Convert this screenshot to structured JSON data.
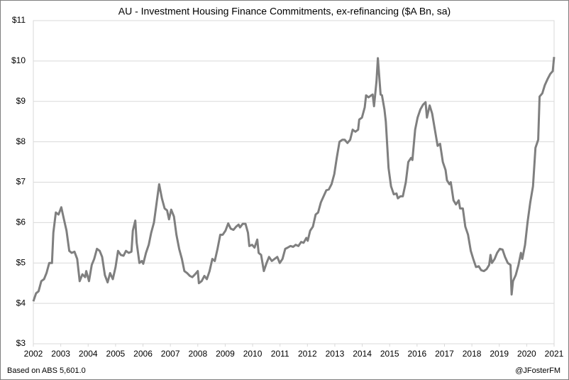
{
  "chart_data": {
    "type": "line",
    "title": "AU - Investment Housing Finance Commitments, ex-refinancing ($A Bn, sa)",
    "source": "Based on ABS 5,601.0",
    "credit": "@JFosterFM",
    "x": [
      2002.0,
      2002.1,
      2002.19,
      2002.29,
      2002.39,
      2002.48,
      2002.58,
      2002.68,
      2002.73,
      2002.82,
      2002.92,
      2003.02,
      2003.11,
      2003.21,
      2003.31,
      2003.4,
      2003.5,
      2003.6,
      2003.69,
      2003.79,
      2003.89,
      2003.93,
      2004.03,
      2004.13,
      2004.22,
      2004.32,
      2004.42,
      2004.51,
      2004.61,
      2004.71,
      2004.8,
      2004.9,
      2005.0,
      2005.09,
      2005.19,
      2005.29,
      2005.38,
      2005.48,
      2005.58,
      2005.63,
      2005.72,
      2005.77,
      2005.87,
      2005.96,
      2006.01,
      2006.11,
      2006.21,
      2006.3,
      2006.4,
      2006.5,
      2006.59,
      2006.69,
      2006.79,
      2006.88,
      2006.95,
      2007.03,
      2007.13,
      2007.22,
      2007.32,
      2007.42,
      2007.51,
      2007.61,
      2007.71,
      2007.8,
      2007.9,
      2008.0,
      2008.04,
      2008.14,
      2008.24,
      2008.33,
      2008.43,
      2008.53,
      2008.62,
      2008.72,
      2008.82,
      2008.91,
      2009.01,
      2009.11,
      2009.2,
      2009.3,
      2009.4,
      2009.49,
      2009.54,
      2009.64,
      2009.74,
      2009.83,
      2009.88,
      2009.98,
      2010.07,
      2010.17,
      2010.22,
      2010.31,
      2010.41,
      2010.51,
      2010.6,
      2010.7,
      2010.8,
      2010.9,
      2010.99,
      2011.09,
      2011.19,
      2011.28,
      2011.38,
      2011.48,
      2011.57,
      2011.67,
      2011.77,
      2011.86,
      2011.96,
      2012.01,
      2012.1,
      2012.2,
      2012.3,
      2012.39,
      2012.49,
      2012.59,
      2012.69,
      2012.78,
      2012.88,
      2012.98,
      2013.07,
      2013.17,
      2013.27,
      2013.36,
      2013.46,
      2013.56,
      2013.65,
      2013.75,
      2013.85,
      2013.89,
      2013.99,
      2014.09,
      2014.14,
      2014.23,
      2014.33,
      2014.38,
      2014.43,
      2014.52,
      2014.57,
      2014.67,
      2014.72,
      2014.81,
      2014.86,
      2014.96,
      2015.05,
      2015.15,
      2015.25,
      2015.3,
      2015.39,
      2015.48,
      2015.59,
      2015.68,
      2015.78,
      2015.83,
      2015.93,
      2016.02,
      2016.12,
      2016.22,
      2016.31,
      2016.36,
      2016.46,
      2016.55,
      2016.65,
      2016.75,
      2016.84,
      2016.94,
      2017.04,
      2017.09,
      2017.18,
      2017.23,
      2017.33,
      2017.42,
      2017.52,
      2017.57,
      2017.67,
      2017.76,
      2017.86,
      2017.96,
      2018.05,
      2018.15,
      2018.25,
      2018.34,
      2018.44,
      2018.54,
      2018.63,
      2018.68,
      2018.73,
      2018.83,
      2018.92,
      2019.02,
      2019.12,
      2019.21,
      2019.31,
      2019.41,
      2019.45,
      2019.5,
      2019.6,
      2019.7,
      2019.79,
      2019.84,
      2019.94,
      2020.03,
      2020.13,
      2020.23,
      2020.32,
      2020.42,
      2020.47,
      2020.57,
      2020.66,
      2020.76,
      2020.86,
      2020.95,
      2021.0
    ],
    "series": [
      {
        "color": "#7f7f7f",
        "values": [
          4.05,
          4.25,
          4.3,
          4.55,
          4.6,
          4.75,
          5.0,
          5.0,
          5.75,
          6.25,
          6.2,
          6.38,
          6.1,
          5.8,
          5.3,
          5.25,
          5.28,
          5.1,
          4.55,
          4.72,
          4.65,
          4.8,
          4.55,
          4.95,
          5.1,
          5.35,
          5.3,
          5.15,
          4.7,
          4.52,
          4.75,
          4.6,
          4.9,
          5.3,
          5.2,
          5.18,
          5.3,
          5.25,
          5.28,
          5.8,
          6.05,
          5.5,
          5.0,
          5.05,
          4.98,
          5.25,
          5.45,
          5.75,
          6.0,
          6.5,
          6.95,
          6.6,
          6.35,
          6.3,
          6.08,
          6.32,
          6.15,
          5.7,
          5.35,
          5.1,
          4.8,
          4.75,
          4.68,
          4.65,
          4.72,
          4.8,
          4.5,
          4.55,
          4.68,
          4.6,
          4.8,
          5.1,
          5.05,
          5.35,
          5.7,
          5.7,
          5.8,
          5.98,
          5.85,
          5.82,
          5.9,
          5.95,
          5.88,
          5.97,
          5.97,
          5.75,
          5.42,
          5.45,
          5.38,
          5.58,
          5.25,
          5.2,
          4.8,
          5.0,
          5.15,
          5.05,
          5.1,
          5.15,
          5.0,
          5.1,
          5.35,
          5.38,
          5.42,
          5.4,
          5.45,
          5.42,
          5.52,
          5.5,
          5.62,
          5.55,
          5.8,
          5.9,
          6.2,
          6.25,
          6.5,
          6.65,
          6.8,
          6.82,
          6.95,
          7.2,
          7.6,
          8.0,
          8.05,
          8.05,
          7.97,
          8.05,
          8.3,
          8.25,
          8.3,
          8.55,
          8.6,
          8.85,
          9.15,
          9.1,
          9.15,
          9.17,
          8.88,
          9.5,
          10.07,
          9.17,
          9.15,
          8.8,
          8.5,
          7.35,
          6.9,
          6.7,
          6.72,
          6.6,
          6.65,
          6.65,
          7.0,
          7.5,
          7.6,
          7.55,
          8.3,
          8.6,
          8.8,
          8.92,
          8.98,
          8.6,
          8.9,
          8.7,
          8.3,
          7.9,
          7.95,
          7.5,
          7.3,
          7.05,
          6.95,
          7.0,
          6.55,
          6.45,
          6.55,
          6.35,
          6.35,
          5.9,
          5.7,
          5.3,
          5.1,
          4.9,
          4.92,
          4.82,
          4.8,
          4.85,
          4.95,
          5.2,
          5.0,
          5.1,
          5.25,
          5.35,
          5.33,
          5.15,
          5.0,
          4.95,
          4.22,
          4.55,
          4.7,
          4.95,
          5.25,
          5.1,
          5.45,
          6.0,
          6.5,
          6.9,
          7.85,
          8.05,
          9.12,
          9.2,
          9.4,
          9.55,
          9.68,
          9.75,
          10.1
        ]
      }
    ],
    "xlim": [
      2002,
      2021
    ],
    "xticks": [
      2002,
      2003,
      2004,
      2005,
      2006,
      2007,
      2008,
      2009,
      2010,
      2011,
      2012,
      2013,
      2014,
      2015,
      2016,
      2017,
      2018,
      2019,
      2020,
      2021
    ],
    "ylim": [
      3,
      11
    ],
    "yticks": [
      {
        "value": 3,
        "label": "$3"
      },
      {
        "value": 4,
        "label": "$4"
      },
      {
        "value": 5,
        "label": "$5"
      },
      {
        "value": 6,
        "label": "$6"
      },
      {
        "value": 7,
        "label": "$7"
      },
      {
        "value": 8,
        "label": "$8"
      },
      {
        "value": 9,
        "label": "$9"
      },
      {
        "value": 10,
        "label": "$10"
      },
      {
        "value": 11,
        "label": "$11"
      }
    ],
    "grid": true
  }
}
